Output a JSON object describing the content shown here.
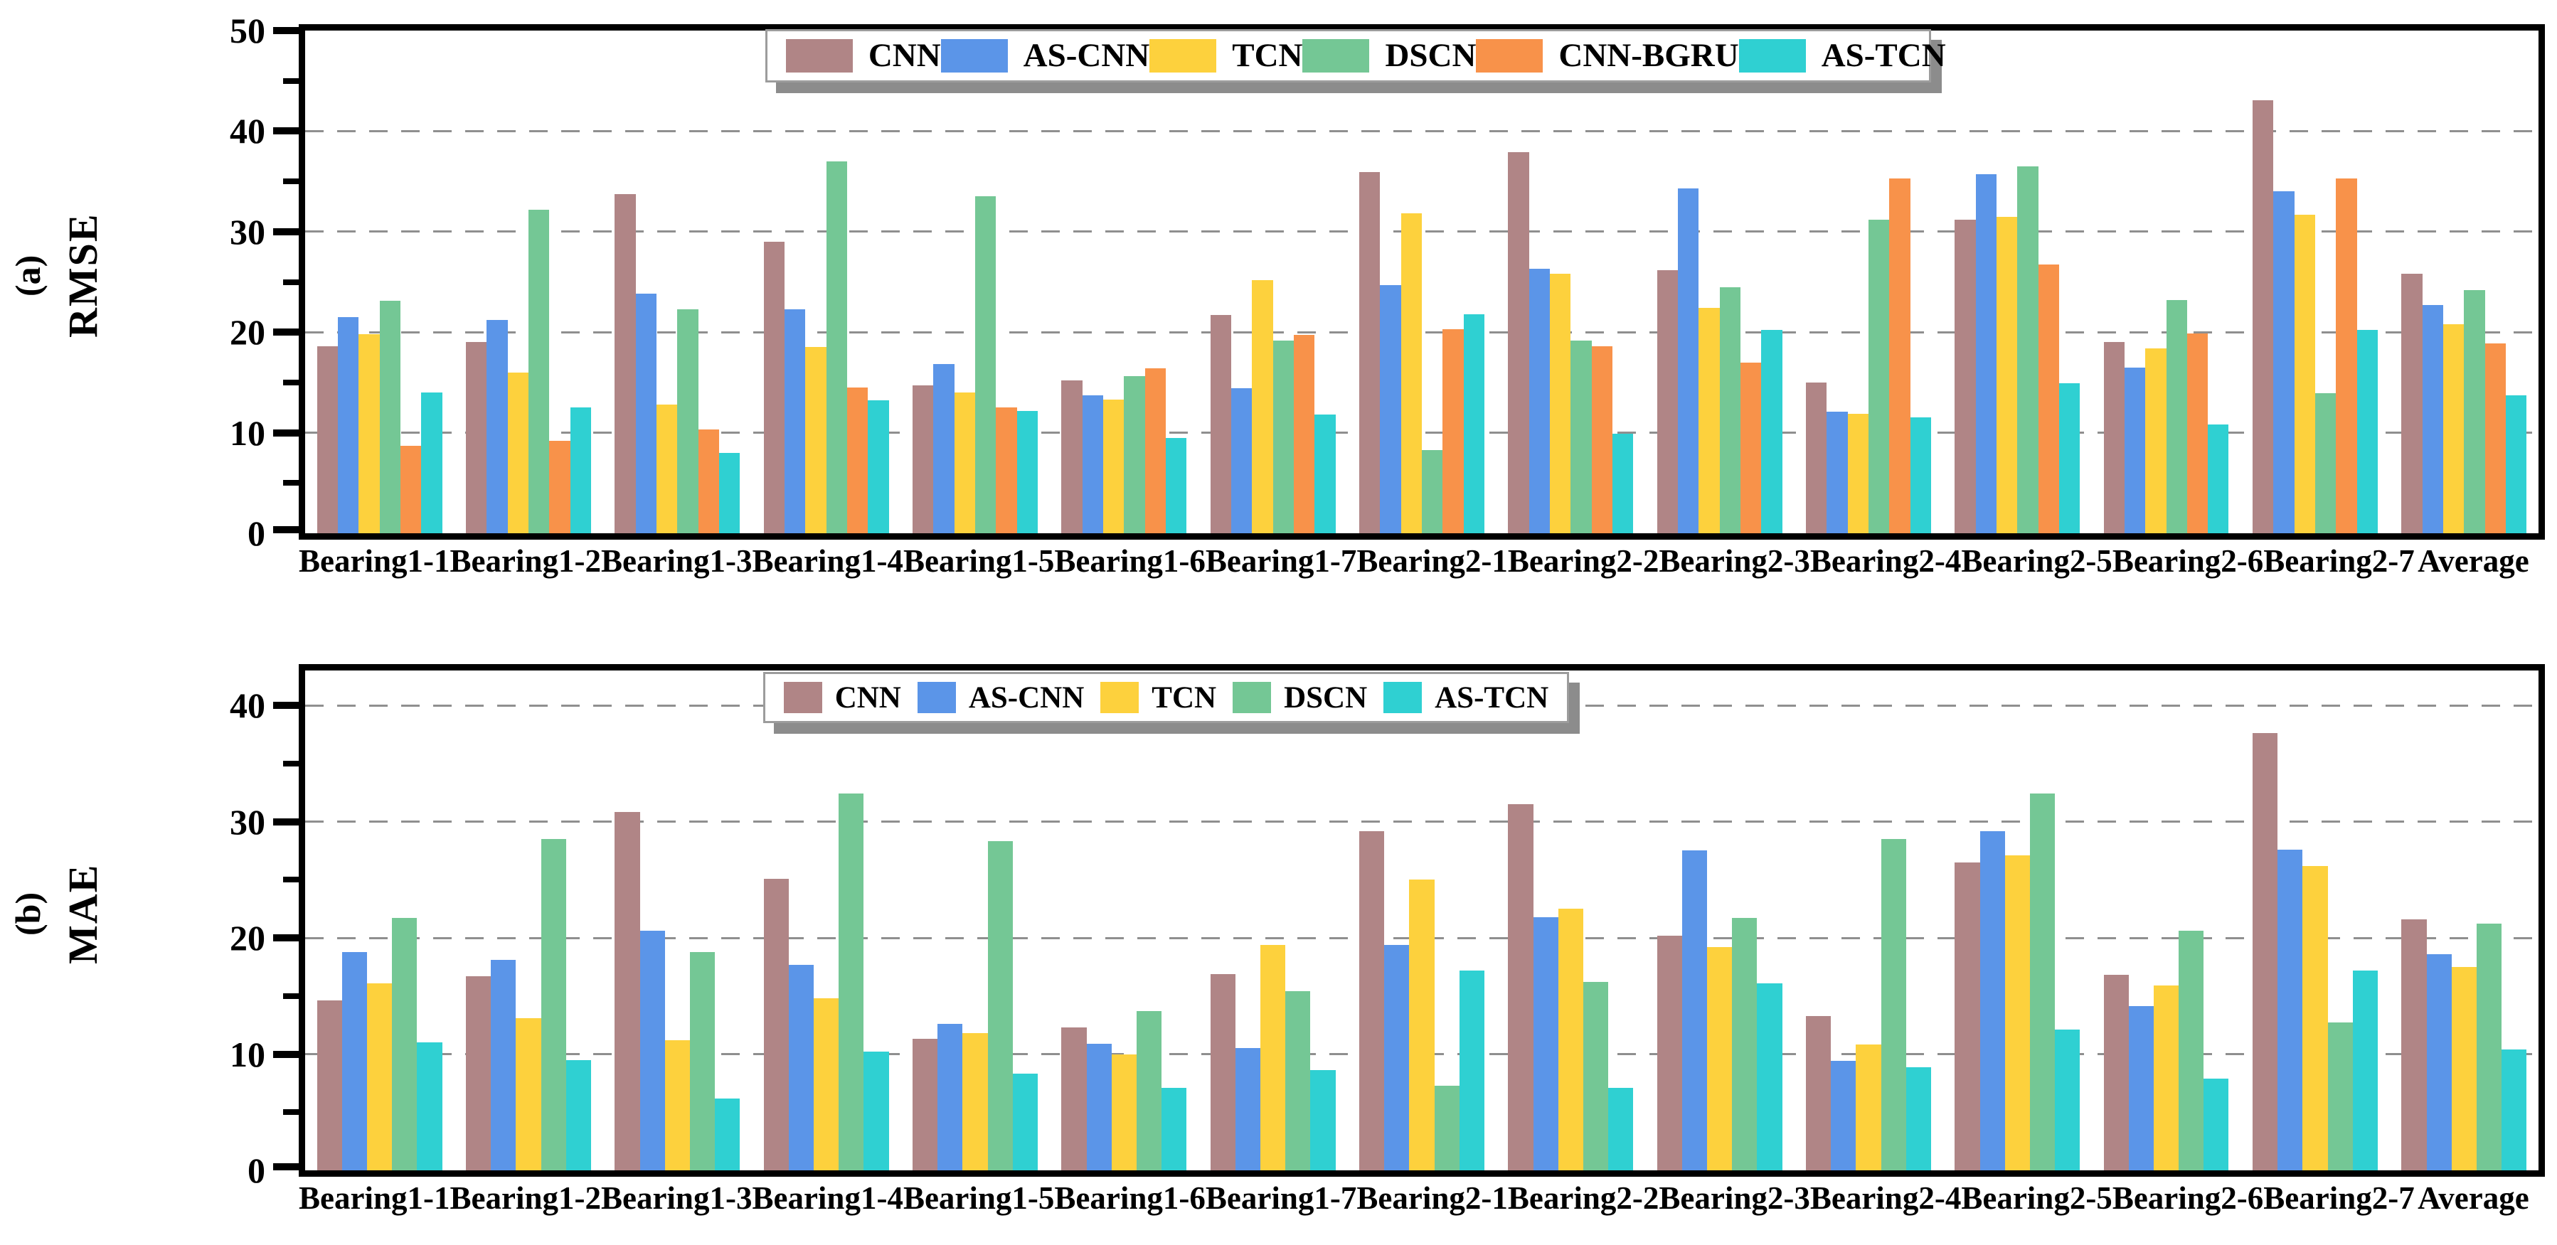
{
  "figure_title": "",
  "palette": {
    "CNN": "#b08586",
    "AS-CNN": "#5b95e8",
    "TCN": "#fdd13d",
    "DSCN": "#74c795",
    "CNN-BGRU": "#f8924a",
    "AS-TCN": "#2fd0d2"
  },
  "grid_color": "#8f8f8f",
  "chart_data": [
    {
      "type": "bar",
      "panel_label": "(a)",
      "ylabel": "RMSE",
      "xlabel": "",
      "ylim": [
        0,
        50
      ],
      "yticks": [
        0,
        10,
        20,
        30,
        40,
        50
      ],
      "minor_tick_step": 5,
      "grid": "dashed-horizontal",
      "legend_position": "top-center",
      "categories": [
        "Bearing1-1",
        "Bearing1-2",
        "Bearing1-3",
        "Bearing1-4",
        "Bearing1-5",
        "Bearing1-6",
        "Bearing1-7",
        "Bearing2-1",
        "Bearing2-2",
        "Bearing2-3",
        "Bearing2-4",
        "Bearing2-5",
        "Bearing2-6",
        "Bearing2-7",
        "Average"
      ],
      "series": [
        {
          "name": "CNN",
          "color": "#b08586",
          "values": [
            18.6,
            19.0,
            33.7,
            29.0,
            14.7,
            15.2,
            21.7,
            35.9,
            37.9,
            26.2,
            15.0,
            31.2,
            19.0,
            43.1,
            25.8
          ]
        },
        {
          "name": "AS-CNN",
          "color": "#5b95e8",
          "values": [
            21.5,
            21.2,
            23.8,
            22.3,
            16.8,
            13.7,
            14.4,
            24.7,
            26.3,
            34.3,
            12.1,
            35.7,
            16.5,
            34.0,
            22.7
          ]
        },
        {
          "name": "TCN",
          "color": "#fdd13d",
          "values": [
            19.8,
            16.0,
            12.8,
            18.5,
            14.0,
            13.3,
            25.2,
            31.8,
            25.8,
            22.4,
            11.9,
            31.5,
            18.4,
            31.7,
            20.8
          ]
        },
        {
          "name": "DSCN",
          "color": "#74c795",
          "values": [
            23.1,
            32.2,
            22.3,
            37.0,
            33.5,
            15.6,
            19.2,
            8.3,
            19.2,
            24.5,
            31.2,
            36.5,
            23.2,
            13.9,
            24.2
          ]
        },
        {
          "name": "CNN-BGRU",
          "color": "#f8924a",
          "values": [
            8.7,
            9.2,
            10.3,
            14.5,
            12.5,
            16.4,
            19.7,
            20.3,
            18.6,
            17.0,
            35.3,
            26.7,
            19.9,
            35.3,
            18.9
          ]
        },
        {
          "name": "AS-TCN",
          "color": "#2fd0d2",
          "values": [
            14.0,
            12.5,
            8.0,
            13.2,
            12.2,
            9.5,
            11.8,
            21.8,
            9.9,
            20.2,
            11.5,
            14.9,
            10.8,
            20.2,
            13.7
          ]
        }
      ]
    },
    {
      "type": "bar",
      "panel_label": "(b)",
      "ylabel": "MAE",
      "xlabel": "",
      "ylim": [
        0,
        43
      ],
      "yticks": [
        0,
        10,
        20,
        30,
        40
      ],
      "minor_tick_step": 5,
      "grid": "dashed-horizontal",
      "legend_position": "top-center",
      "categories": [
        "Bearing1-1",
        "Bearing1-2",
        "Bearing1-3",
        "Bearing1-4",
        "Bearing1-5",
        "Bearing1-6",
        "Bearing1-7",
        "Bearing2-1",
        "Bearing2-2",
        "Bearing2-3",
        "Bearing2-4",
        "Bearing2-5",
        "Bearing2-6",
        "Bearing2-7",
        "Average"
      ],
      "series": [
        {
          "name": "CNN",
          "color": "#b08586",
          "values": [
            14.6,
            16.7,
            30.8,
            25.1,
            11.3,
            12.3,
            16.9,
            29.2,
            31.5,
            20.2,
            13.3,
            26.5,
            16.8,
            37.6,
            21.6
          ]
        },
        {
          "name": "AS-CNN",
          "color": "#5b95e8",
          "values": [
            18.8,
            18.1,
            20.6,
            17.7,
            12.6,
            10.9,
            10.5,
            19.4,
            21.8,
            27.5,
            9.4,
            29.2,
            14.1,
            27.6,
            18.6
          ]
        },
        {
          "name": "TCN",
          "color": "#fdd13d",
          "values": [
            16.1,
            13.1,
            11.2,
            14.8,
            11.8,
            10.0,
            19.4,
            25.0,
            22.5,
            19.2,
            10.8,
            27.1,
            15.9,
            26.2,
            17.5
          ]
        },
        {
          "name": "DSCN",
          "color": "#74c795",
          "values": [
            21.7,
            28.5,
            18.8,
            32.4,
            28.3,
            13.7,
            15.4,
            7.3,
            16.2,
            21.7,
            28.5,
            32.4,
            20.6,
            12.7,
            21.2
          ]
        },
        {
          "name": "AS-TCN",
          "color": "#2fd0d2",
          "values": [
            11.0,
            9.5,
            6.2,
            10.2,
            8.3,
            7.1,
            8.6,
            17.2,
            7.1,
            16.1,
            8.9,
            12.1,
            7.9,
            17.2,
            10.4
          ]
        }
      ]
    }
  ]
}
